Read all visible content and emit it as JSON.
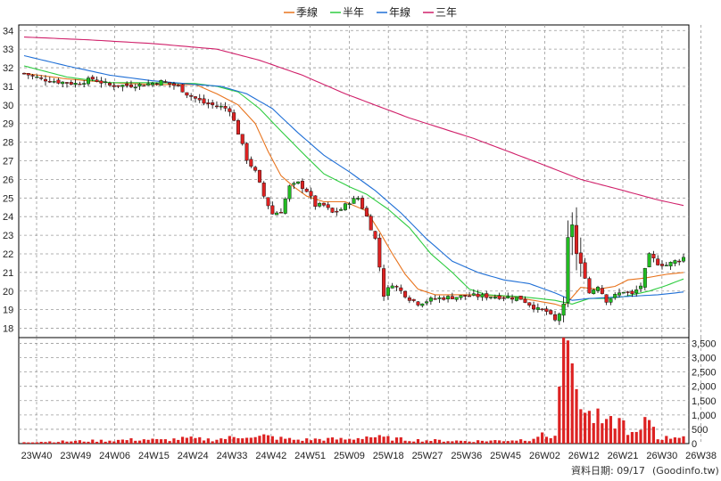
{
  "chart_data": {
    "type": "candlestick-with-volume",
    "legend": [
      {
        "name": "季線",
        "color": "#e8741e"
      },
      {
        "name": "半年",
        "color": "#2ecc40"
      },
      {
        "name": "年線",
        "color": "#1f6fd6"
      },
      {
        "name": "三年",
        "color": "#d0206a"
      }
    ],
    "price_axis": {
      "ylim": [
        17.5,
        34.3
      ],
      "ticks": [
        18,
        19,
        20,
        21,
        22,
        23,
        24,
        25,
        26,
        27,
        28,
        29,
        30,
        31,
        32,
        33,
        34
      ]
    },
    "volume_axis": {
      "ylim": [
        0,
        3700
      ],
      "ticks": [
        "0",
        "500",
        "1,000",
        "1,500",
        "2,000",
        "2,500",
        "3,000",
        "3,500"
      ],
      "tick_values": [
        0,
        500,
        1000,
        1500,
        2000,
        2500,
        3000,
        3500
      ]
    },
    "x_ticks": [
      "23W40",
      "23W49",
      "24W06",
      "24W15",
      "24W24",
      "24W33",
      "24W42",
      "24W51",
      "25W09",
      "25W18",
      "25W27",
      "25W36",
      "25W45",
      "26W02",
      "26W12",
      "26W21",
      "26W30",
      "26W38"
    ],
    "weeks_count": 155,
    "up_color": "#22bb22",
    "down_color": "#dd2222",
    "volume_color": "#dd2222",
    "ma_anchors": {
      "season": [
        [
          0,
          31.7
        ],
        [
          10,
          31.4
        ],
        [
          20,
          31.2
        ],
        [
          30,
          31.1
        ],
        [
          40,
          31.1
        ],
        [
          45,
          30.6
        ],
        [
          50,
          30.0
        ],
        [
          54,
          29.0
        ],
        [
          57,
          27.5
        ],
        [
          60,
          26.2
        ],
        [
          63,
          25.6
        ],
        [
          66,
          25.1
        ],
        [
          70,
          24.8
        ],
        [
          75,
          24.8
        ],
        [
          80,
          24.3
        ],
        [
          83,
          23.2
        ],
        [
          86,
          22.0
        ],
        [
          89,
          20.9
        ],
        [
          92,
          20.1
        ],
        [
          96,
          19.8
        ],
        [
          104,
          19.8
        ],
        [
          114,
          19.7
        ],
        [
          124,
          19.3
        ],
        [
          126,
          19.15
        ],
        [
          130,
          20.2
        ],
        [
          134,
          20.1
        ],
        [
          138,
          20.25
        ],
        [
          141,
          20.6
        ],
        [
          145,
          20.7
        ],
        [
          150,
          20.9
        ],
        [
          154,
          21.0
        ]
      ],
      "half": [
        [
          0,
          32.1
        ],
        [
          10,
          31.5
        ],
        [
          20,
          31.2
        ],
        [
          30,
          31.2
        ],
        [
          40,
          31.15
        ],
        [
          45,
          31.0
        ],
        [
          50,
          30.7
        ],
        [
          55,
          29.8
        ],
        [
          60,
          28.6
        ],
        [
          66,
          27.2
        ],
        [
          70,
          26.3
        ],
        [
          76,
          25.6
        ],
        [
          80,
          25.2
        ],
        [
          85,
          24.4
        ],
        [
          90,
          23.4
        ],
        [
          95,
          22.0
        ],
        [
          100,
          21.0
        ],
        [
          104,
          20.1
        ],
        [
          108,
          19.8
        ],
        [
          116,
          19.7
        ],
        [
          124,
          19.5
        ],
        [
          128,
          19.3
        ],
        [
          132,
          19.6
        ],
        [
          136,
          19.6
        ],
        [
          140,
          19.7
        ],
        [
          146,
          20.0
        ],
        [
          150,
          20.3
        ],
        [
          154,
          20.65
        ]
      ],
      "year": [
        [
          0,
          32.65
        ],
        [
          10,
          32.1
        ],
        [
          20,
          31.6
        ],
        [
          30,
          31.3
        ],
        [
          40,
          31.1
        ],
        [
          46,
          31.0
        ],
        [
          52,
          30.6
        ],
        [
          58,
          29.8
        ],
        [
          64,
          28.5
        ],
        [
          70,
          27.3
        ],
        [
          76,
          26.4
        ],
        [
          82,
          25.4
        ],
        [
          88,
          24.2
        ],
        [
          94,
          22.8
        ],
        [
          100,
          21.6
        ],
        [
          106,
          21.0
        ],
        [
          112,
          20.6
        ],
        [
          118,
          20.4
        ],
        [
          124,
          19.9
        ],
        [
          128,
          19.5
        ],
        [
          132,
          19.6
        ],
        [
          140,
          19.7
        ],
        [
          148,
          19.8
        ],
        [
          154,
          19.95
        ]
      ],
      "three": [
        [
          0,
          33.65
        ],
        [
          15,
          33.5
        ],
        [
          30,
          33.3
        ],
        [
          45,
          33.0
        ],
        [
          55,
          32.4
        ],
        [
          65,
          31.6
        ],
        [
          75,
          30.6
        ],
        [
          90,
          29.3
        ],
        [
          105,
          28.2
        ],
        [
          120,
          26.9
        ],
        [
          130,
          26.0
        ],
        [
          140,
          25.4
        ],
        [
          148,
          24.9
        ],
        [
          154,
          24.6
        ]
      ]
    },
    "price_anchors": [
      [
        0,
        31.7
      ],
      [
        4,
        31.4
      ],
      [
        8,
        31.25
      ],
      [
        12,
        31.15
      ],
      [
        16,
        31.4
      ],
      [
        20,
        31.05
      ],
      [
        24,
        31.05
      ],
      [
        28,
        31.1
      ],
      [
        32,
        31.25
      ],
      [
        36,
        31.0
      ],
      [
        38,
        30.6
      ],
      [
        42,
        30.1
      ],
      [
        46,
        29.9
      ],
      [
        48,
        29.75
      ],
      [
        50,
        28.5
      ],
      [
        52,
        27.1
      ],
      [
        54,
        26.4
      ],
      [
        56,
        25.1
      ],
      [
        58,
        24.15
      ],
      [
        60,
        24.3
      ],
      [
        62,
        25.6
      ],
      [
        64,
        25.8
      ],
      [
        66,
        25.4
      ],
      [
        68,
        24.6
      ],
      [
        70,
        24.6
      ],
      [
        72,
        24.2
      ],
      [
        74,
        24.4
      ],
      [
        76,
        24.8
      ],
      [
        78,
        25.0
      ],
      [
        80,
        24.0
      ],
      [
        82,
        22.8
      ],
      [
        84,
        19.8
      ],
      [
        86,
        20.4
      ],
      [
        88,
        20.0
      ],
      [
        90,
        19.6
      ],
      [
        92,
        19.35
      ],
      [
        96,
        19.6
      ],
      [
        104,
        19.75
      ],
      [
        112,
        19.7
      ],
      [
        116,
        19.6
      ],
      [
        118,
        19.3
      ],
      [
        120,
        19.0
      ],
      [
        122,
        18.9
      ],
      [
        124,
        18.4
      ],
      [
        126,
        19.2
      ],
      [
        127,
        22.8
      ],
      [
        128,
        23.6
      ],
      [
        129,
        22.0
      ],
      [
        131,
        20.8
      ],
      [
        132,
        19.9
      ],
      [
        134,
        20.3
      ],
      [
        136,
        19.5
      ],
      [
        140,
        20.0
      ],
      [
        142,
        19.8
      ],
      [
        144,
        20.3
      ],
      [
        146,
        21.9
      ],
      [
        148,
        21.5
      ],
      [
        150,
        21.4
      ],
      [
        152,
        21.6
      ],
      [
        154,
        21.8
      ]
    ],
    "volume_anchors": [
      [
        0,
        60
      ],
      [
        10,
        80
      ],
      [
        20,
        110
      ],
      [
        28,
        150
      ],
      [
        32,
        120
      ],
      [
        38,
        180
      ],
      [
        44,
        140
      ],
      [
        48,
        200
      ],
      [
        50,
        230
      ],
      [
        52,
        300
      ],
      [
        54,
        200
      ],
      [
        56,
        260
      ],
      [
        60,
        180
      ],
      [
        64,
        130
      ],
      [
        70,
        160
      ],
      [
        76,
        150
      ],
      [
        80,
        250
      ],
      [
        84,
        200
      ],
      [
        90,
        130
      ],
      [
        96,
        110
      ],
      [
        104,
        90
      ],
      [
        112,
        110
      ],
      [
        118,
        150
      ],
      [
        120,
        300
      ],
      [
        122,
        250
      ],
      [
        124,
        280
      ],
      [
        126,
        3700
      ],
      [
        127,
        3600
      ],
      [
        128,
        2800
      ],
      [
        129,
        1900
      ],
      [
        130,
        1200
      ],
      [
        132,
        950
      ],
      [
        134,
        850
      ],
      [
        136,
        600
      ],
      [
        138,
        800
      ],
      [
        140,
        700
      ],
      [
        142,
        300
      ],
      [
        144,
        400
      ],
      [
        146,
        950
      ],
      [
        148,
        200
      ],
      [
        150,
        200
      ],
      [
        152,
        250
      ],
      [
        154,
        300
      ]
    ]
  },
  "footer": {
    "date_label": "資料日期: 09/17",
    "source": "(Goodinfo.tw)"
  }
}
